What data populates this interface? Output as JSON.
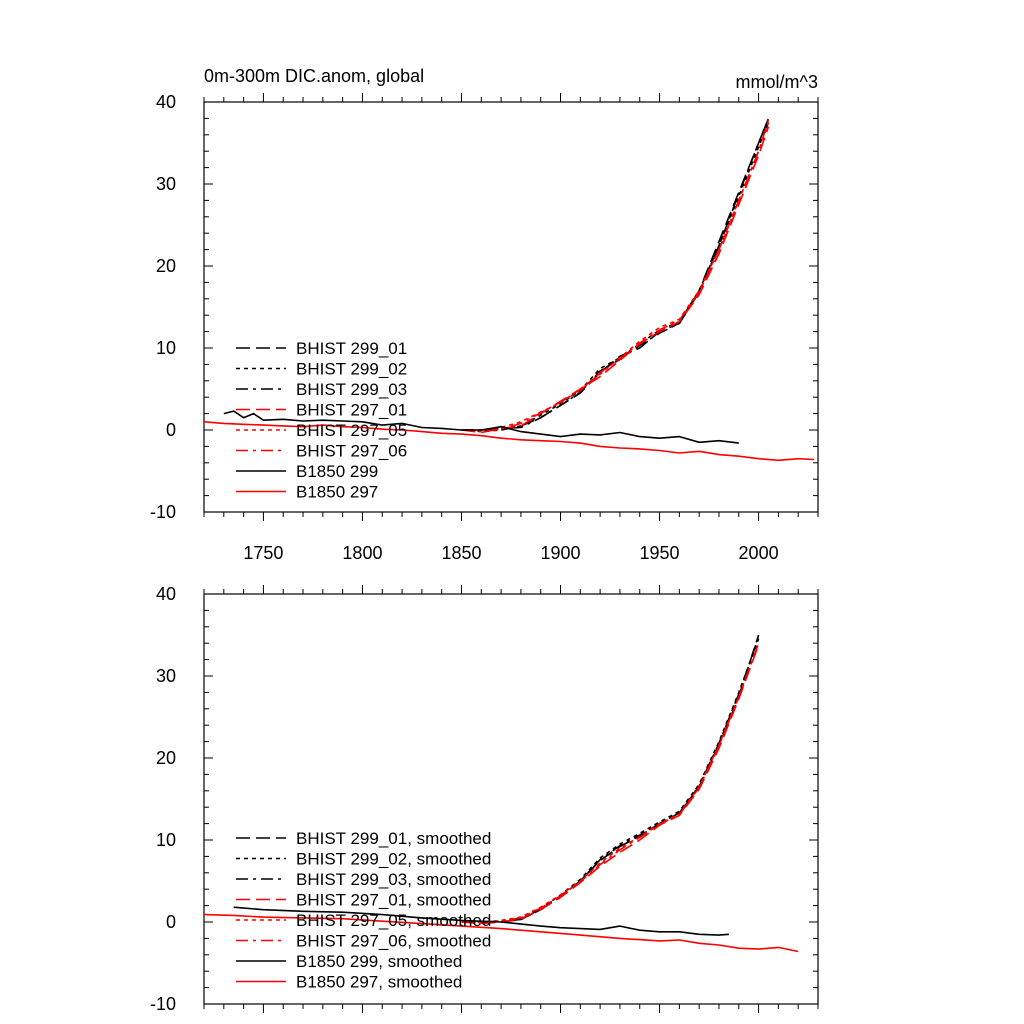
{
  "chart_data": [
    {
      "type": "line",
      "title": "0m-300m DIC.anom, global",
      "units": "mmol/m^3",
      "xlim": [
        1720,
        2030
      ],
      "ylim": [
        -10,
        40
      ],
      "xticks": [
        1750,
        1800,
        1850,
        1900,
        1950,
        2000
      ],
      "xtick_labels": [
        "1750",
        "1800",
        "1850",
        "1900",
        "1950",
        "2000"
      ],
      "yticks": [
        -10,
        0,
        10,
        20,
        30,
        40
      ],
      "ytick_labels": [
        "-10",
        "0",
        "10",
        "20",
        "30",
        "40"
      ],
      "legend_position": "lower-left",
      "series": [
        {
          "name": "BHIST 299_01",
          "color": "#000000",
          "dash": "long-dash",
          "x": [
            1850,
            1860,
            1870,
            1880,
            1890,
            1900,
            1910,
            1920,
            1930,
            1940,
            1950,
            1960,
            1970,
            1980,
            1990,
            2000,
            2005
          ],
          "y": [
            0,
            0,
            0,
            0.5,
            1.5,
            3,
            4.5,
            7,
            9,
            10,
            12,
            13,
            17,
            23,
            29,
            35,
            38
          ]
        },
        {
          "name": "BHIST 299_02",
          "color": "#000000",
          "dash": "short-dash",
          "x": [
            1850,
            1860,
            1870,
            1880,
            1890,
            1900,
            1910,
            1920,
            1930,
            1940,
            1950,
            1960,
            1970,
            1980,
            1990,
            2000,
            2005
          ],
          "y": [
            0,
            -0.2,
            0,
            0.5,
            1.8,
            3.2,
            4.8,
            7.5,
            8.8,
            10.5,
            12.2,
            13.2,
            17,
            22.5,
            28.5,
            34.5,
            37.5
          ]
        },
        {
          "name": "BHIST 299_03",
          "color": "#000000",
          "dash": "dash-dot",
          "x": [
            1850,
            1860,
            1870,
            1880,
            1890,
            1900,
            1910,
            1920,
            1930,
            1940,
            1950,
            1960,
            1970,
            1980,
            1990,
            2000,
            2005
          ],
          "y": [
            0,
            0,
            0.2,
            0.3,
            1.5,
            3,
            4.6,
            7.2,
            8.6,
            10.3,
            11.8,
            13,
            16.8,
            22.5,
            28.8,
            35,
            38
          ]
        },
        {
          "name": "BHIST 297_01",
          "color": "#ff0000",
          "dash": "long-dash",
          "x": [
            1850,
            1860,
            1870,
            1880,
            1890,
            1900,
            1910,
            1920,
            1930,
            1940,
            1950,
            1960,
            1970,
            1980,
            1990,
            2000,
            2005
          ],
          "y": [
            0,
            -0.3,
            0.2,
            0.5,
            2,
            3.5,
            5,
            6.5,
            8.5,
            10.5,
            12,
            13.2,
            16.5,
            21.5,
            27.5,
            33.5,
            37
          ]
        },
        {
          "name": "BHIST 297_05",
          "color": "#ff0000",
          "dash": "short-dash",
          "x": [
            1850,
            1860,
            1870,
            1880,
            1890,
            1900,
            1910,
            1920,
            1930,
            1940,
            1950,
            1960,
            1970,
            1980,
            1990,
            2000,
            2005
          ],
          "y": [
            0,
            0,
            0.3,
            1,
            2.2,
            3.3,
            5,
            6.8,
            8.8,
            10.8,
            12.5,
            13.5,
            17,
            22,
            28,
            34,
            37.5
          ]
        },
        {
          "name": "BHIST 297_06",
          "color": "#ff0000",
          "dash": "dash-dot",
          "x": [
            1850,
            1860,
            1870,
            1880,
            1890,
            1900,
            1910,
            1920,
            1930,
            1940,
            1950,
            1960,
            1970,
            1980,
            1990,
            2000,
            2005
          ],
          "y": [
            0,
            -0.2,
            0.1,
            0.8,
            2.1,
            3.4,
            4.8,
            7,
            8.7,
            10.6,
            12.2,
            13.4,
            16.8,
            22,
            28,
            34,
            37.8
          ]
        },
        {
          "name": "B1850 299",
          "color": "#000000",
          "dash": "solid",
          "x": [
            1730,
            1735,
            1740,
            1745,
            1750,
            1760,
            1770,
            1780,
            1790,
            1800,
            1810,
            1820,
            1830,
            1840,
            1850,
            1860,
            1870,
            1880,
            1890,
            1900,
            1910,
            1920,
            1930,
            1940,
            1950,
            1960,
            1970,
            1980,
            1990
          ],
          "y": [
            2,
            2.3,
            1.5,
            2,
            1.2,
            1.3,
            1.1,
            1.2,
            1.1,
            1,
            0.6,
            0.8,
            0.3,
            0.2,
            0,
            0,
            0.4,
            -0.2,
            -0.5,
            -0.8,
            -0.5,
            -0.6,
            -0.3,
            -0.8,
            -1,
            -0.8,
            -1.5,
            -1.3,
            -1.6
          ]
        },
        {
          "name": "B1850 297",
          "color": "#ff0000",
          "dash": "solid",
          "x": [
            1720,
            1730,
            1740,
            1750,
            1760,
            1770,
            1780,
            1790,
            1800,
            1810,
            1820,
            1830,
            1840,
            1850,
            1860,
            1870,
            1880,
            1890,
            1900,
            1910,
            1920,
            1930,
            1940,
            1950,
            1960,
            1970,
            1980,
            1990,
            2000,
            2010,
            2020,
            2028
          ],
          "y": [
            1,
            0.8,
            0.7,
            0.6,
            0.5,
            0.4,
            0.6,
            0.4,
            0.3,
            0.1,
            0,
            -0.2,
            -0.4,
            -0.5,
            -0.7,
            -1,
            -1.2,
            -1.3,
            -1.4,
            -1.6,
            -2,
            -2.2,
            -2.3,
            -2.5,
            -2.8,
            -2.6,
            -3,
            -3.2,
            -3.5,
            -3.7,
            -3.5,
            -3.6
          ]
        }
      ]
    },
    {
      "type": "line",
      "xlim": [
        1720,
        2030
      ],
      "ylim": [
        -10,
        40
      ],
      "xticks": [
        1750,
        1800,
        1850,
        1900,
        1950,
        2000
      ],
      "yticks": [
        -10,
        0,
        10,
        20,
        30,
        40
      ],
      "ytick_labels": [
        "-10",
        "0",
        "10",
        "20",
        "30",
        "40"
      ],
      "legend_position": "lower-left",
      "series": [
        {
          "name": "BHIST 299_01, smoothed",
          "color": "#000000",
          "dash": "long-dash",
          "x": [
            1850,
            1860,
            1870,
            1880,
            1890,
            1900,
            1910,
            1920,
            1930,
            1940,
            1950,
            1960,
            1970,
            1980,
            1990,
            2000
          ],
          "y": [
            0,
            0,
            0,
            0.3,
            1.5,
            3.2,
            5,
            7.5,
            9.2,
            10.5,
            12,
            13.3,
            16.5,
            21.5,
            27.5,
            35
          ]
        },
        {
          "name": "BHIST 299_02, smoothed",
          "color": "#000000",
          "dash": "short-dash",
          "x": [
            1850,
            1860,
            1870,
            1880,
            1890,
            1900,
            1910,
            1920,
            1930,
            1940,
            1950,
            1960,
            1970,
            1980,
            1990,
            2000
          ],
          "y": [
            0,
            0,
            0.1,
            0.4,
            1.6,
            3.3,
            5.2,
            7.8,
            9.5,
            10.8,
            12.2,
            13.5,
            16.8,
            22,
            28,
            34.5
          ]
        },
        {
          "name": "BHIST 299_03, smoothed",
          "color": "#000000",
          "dash": "dash-dot",
          "x": [
            1850,
            1860,
            1870,
            1880,
            1890,
            1900,
            1910,
            1920,
            1930,
            1940,
            1950,
            1960,
            1970,
            1980,
            1990,
            2000
          ],
          "y": [
            0,
            0,
            0.1,
            0.3,
            1.5,
            3.1,
            5,
            7.6,
            9.3,
            10.6,
            12,
            13.3,
            16.6,
            21.8,
            27.8,
            34.8
          ]
        },
        {
          "name": "BHIST 297_01, smoothed",
          "color": "#ff0000",
          "dash": "long-dash",
          "x": [
            1850,
            1860,
            1870,
            1880,
            1890,
            1900,
            1910,
            1920,
            1930,
            1940,
            1950,
            1960,
            1970,
            1980,
            1990,
            2000
          ],
          "y": [
            0,
            -0.2,
            0,
            0.4,
            1.5,
            3,
            4.8,
            6.8,
            8.5,
            10,
            11.8,
            13,
            16.2,
            21.2,
            27.2,
            33.8
          ]
        },
        {
          "name": "BHIST 297_05, smoothed",
          "color": "#ff0000",
          "dash": "short-dash",
          "x": [
            1850,
            1860,
            1870,
            1880,
            1890,
            1900,
            1910,
            1920,
            1930,
            1940,
            1950,
            1960,
            1970,
            1980,
            1990,
            2000
          ],
          "y": [
            0,
            0,
            0.2,
            0.6,
            1.8,
            3.3,
            5,
            7.2,
            9,
            10.4,
            12,
            13.2,
            16.5,
            21.6,
            27.5,
            34
          ]
        },
        {
          "name": "BHIST 297_06, smoothed",
          "color": "#ff0000",
          "dash": "dash-dot",
          "x": [
            1850,
            1860,
            1870,
            1880,
            1890,
            1900,
            1910,
            1920,
            1930,
            1940,
            1950,
            1960,
            1970,
            1980,
            1990,
            2000
          ],
          "y": [
            0,
            -0.1,
            0.1,
            0.5,
            1.7,
            3.2,
            4.9,
            7,
            8.8,
            10.3,
            11.9,
            13.1,
            16.4,
            21.5,
            27.4,
            34
          ]
        },
        {
          "name": "B1850 299, smoothed",
          "color": "#000000",
          "dash": "solid",
          "x": [
            1735,
            1750,
            1770,
            1790,
            1810,
            1830,
            1850,
            1870,
            1890,
            1900,
            1910,
            1920,
            1930,
            1940,
            1950,
            1960,
            1970,
            1980,
            1985
          ],
          "y": [
            1.8,
            1.5,
            1.3,
            1.2,
            0.9,
            0.5,
            0.2,
            0,
            -0.5,
            -0.7,
            -0.8,
            -0.9,
            -0.5,
            -1,
            -1.2,
            -1.2,
            -1.5,
            -1.6,
            -1.5
          ]
        },
        {
          "name": "B1850 297, smoothed",
          "color": "#ff0000",
          "dash": "solid",
          "x": [
            1720,
            1735,
            1750,
            1770,
            1790,
            1810,
            1830,
            1850,
            1870,
            1890,
            1910,
            1930,
            1950,
            1960,
            1970,
            1980,
            1990,
            2000,
            2010,
            2020
          ],
          "y": [
            0.9,
            0.8,
            0.6,
            0.5,
            0.4,
            0.1,
            -0.2,
            -0.5,
            -0.8,
            -1.2,
            -1.6,
            -2,
            -2.3,
            -2.2,
            -2.6,
            -2.8,
            -3.2,
            -3.3,
            -3.1,
            -3.6
          ]
        }
      ]
    }
  ]
}
